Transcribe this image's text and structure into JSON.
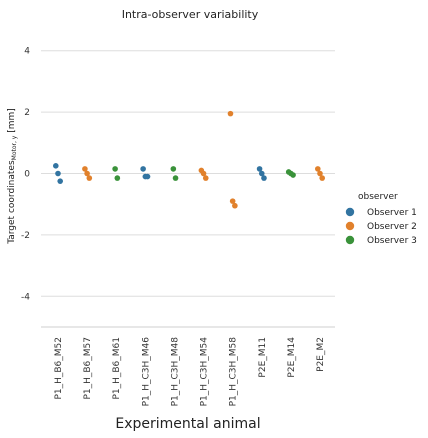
{
  "chart_data": {
    "type": "scatter",
    "title": "Intra-observer variability",
    "xlabel": "Experimental animal",
    "ylabel_main": "Target coordinates",
    "ylabel_sub": "Motor, y",
    "ylabel_unit": " [mm]",
    "ylim": [
      -5,
      5
    ],
    "yticks": [
      -4,
      -2,
      0,
      2,
      4
    ],
    "grid": true,
    "legend_title": "observer",
    "legend_position": "right",
    "categories": [
      "P1_H_B6_M52",
      "P1_H_B6_M57",
      "P1_H_B6_M61",
      "P1_H_C3H_M46",
      "P1_H_C3H_M48",
      "P1_H_C3H_M54",
      "P1_H_C3H_M58",
      "P2E_M11",
      "P2E_M14",
      "P2E_M2"
    ],
    "series": [
      {
        "name": "Observer 1",
        "color": "#3274a1",
        "points": [
          {
            "category": "P1_H_B6_M52",
            "values": [
              0.25,
              0.0,
              -0.25
            ]
          },
          {
            "category": "P1_H_C3H_M46",
            "values": [
              0.15,
              -0.1,
              -0.1
            ]
          },
          {
            "category": "P2E_M11",
            "values": [
              0.15,
              0.0,
              -0.15
            ]
          }
        ]
      },
      {
        "name": "Observer 2",
        "color": "#e1812c",
        "points": [
          {
            "category": "P1_H_B6_M57",
            "values": [
              0.15,
              0.0,
              -0.15
            ]
          },
          {
            "category": "P1_H_C3H_M54",
            "values": [
              0.1,
              0.0,
              -0.15
            ]
          },
          {
            "category": "P1_H_C3H_M58",
            "values": [
              1.95,
              -0.9,
              -1.05
            ]
          },
          {
            "category": "P2E_M2",
            "values": [
              0.15,
              0.0,
              -0.15
            ]
          }
        ]
      },
      {
        "name": "Observer 3",
        "color": "#3a923a",
        "points": [
          {
            "category": "P1_H_B6_M61",
            "values": [
              0.15,
              -0.15
            ]
          },
          {
            "category": "P1_H_C3H_M48",
            "values": [
              0.15,
              -0.15
            ]
          },
          {
            "category": "P2E_M14",
            "values": [
              0.05,
              0.0,
              -0.05
            ]
          }
        ]
      }
    ]
  }
}
